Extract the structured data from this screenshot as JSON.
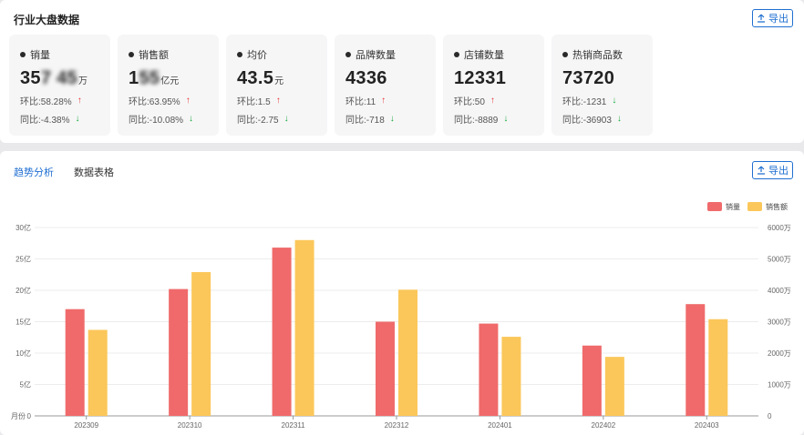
{
  "top_panel": {
    "title": "行业大盘数据",
    "export_label": "导出",
    "cards": [
      {
        "title": "销量",
        "value": "35",
        "value_blurred": "7 45",
        "unit": "万",
        "mom_label": "环比:",
        "mom_value": "58.28%",
        "mom_dir": "up",
        "yoy_label": "同比:",
        "yoy_value": "-4.38%",
        "yoy_dir": "down"
      },
      {
        "title": "销售额",
        "value": "1",
        "value_blurred": "55",
        "unit": "亿元",
        "mom_label": "环比:",
        "mom_value": "63.95%",
        "mom_dir": "up",
        "yoy_label": "同比:",
        "yoy_value": "-10.08%",
        "yoy_dir": "down"
      },
      {
        "title": "均价",
        "value": "43.5",
        "value_blurred": "",
        "unit": "元",
        "mom_label": "环比:",
        "mom_value": "1.5",
        "mom_dir": "up",
        "yoy_label": "同比:",
        "yoy_value": "-2.75",
        "yoy_dir": "down"
      },
      {
        "title": "品牌数量",
        "value": "4336",
        "value_blurred": "",
        "unit": "",
        "mom_label": "环比:",
        "mom_value": "11",
        "mom_dir": "up",
        "yoy_label": "同比:",
        "yoy_value": "-718",
        "yoy_dir": "down"
      },
      {
        "title": "店铺数量",
        "value": "12331",
        "value_blurred": "",
        "unit": "",
        "mom_label": "环比:",
        "mom_value": "50",
        "mom_dir": "up",
        "yoy_label": "同比:",
        "yoy_value": "-8889",
        "yoy_dir": "down"
      },
      {
        "title": "热销商品数",
        "value": "73720",
        "value_blurred": "",
        "unit": "",
        "mom_label": "环比:",
        "mom_value": "-1231",
        "mom_dir": "down",
        "yoy_label": "同比:",
        "yoy_value": "-36903",
        "yoy_dir": "down"
      }
    ]
  },
  "bottom_panel": {
    "tabs": [
      {
        "label": "趋势分析",
        "active": true
      },
      {
        "label": "数据表格",
        "active": false
      }
    ],
    "export_label": "导出"
  },
  "colors": {
    "sales": "#f06a6b",
    "revenue": "#fbc75a",
    "accent": "#1f6fd1"
  },
  "chart_data": {
    "type": "bar",
    "categories": [
      "202309",
      "202310",
      "202311",
      "202312",
      "202401",
      "202402",
      "202403"
    ],
    "series": [
      {
        "name": "销量",
        "axis": "left",
        "values": [
          17.0,
          20.2,
          26.8,
          15.0,
          14.7,
          11.2,
          17.8
        ]
      },
      {
        "name": "销售额",
        "axis": "right",
        "values": [
          2740,
          4580,
          5600,
          4020,
          2520,
          1880,
          3080
        ]
      }
    ],
    "left_axis": {
      "min": 0,
      "max": 30,
      "ticks": [
        "0",
        "5亿",
        "10亿",
        "15亿",
        "20亿",
        "25亿",
        "30亿"
      ],
      "footer": "月份"
    },
    "right_axis": {
      "min": 0,
      "max": 6000,
      "ticks": [
        "0",
        "1000万",
        "2000万",
        "3000万",
        "4000万",
        "5000万",
        "6000万"
      ]
    },
    "legend": {
      "position": "top-right"
    },
    "grid": true
  }
}
